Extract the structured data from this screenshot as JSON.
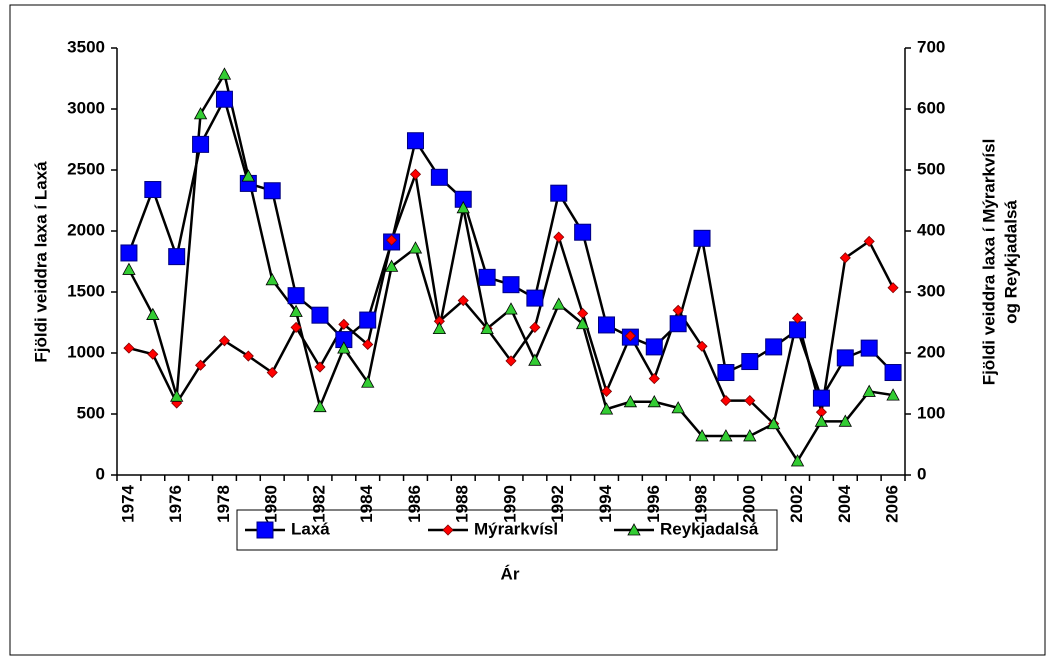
{
  "chart_data": {
    "type": "line",
    "xlabel": "Ár",
    "ylabel": "Fjöldi  veiddra laxa í Laxá",
    "y2label": [
      "Fjöldi veiddra laxa í  Mýrarkvísl",
      "og Reykjadalsá"
    ],
    "categories": [
      "1974",
      null,
      "1976",
      null,
      "1978",
      null,
      "1980",
      null,
      "1982",
      null,
      "1984",
      null,
      "1986",
      null,
      "1988",
      null,
      "1990",
      null,
      "1992",
      null,
      "1994",
      null,
      "1996",
      null,
      "1998",
      null,
      "2000",
      null,
      "2002",
      null,
      "2004",
      null,
      "2006"
    ],
    "ylim": [
      0,
      3500
    ],
    "yticks": [
      0,
      500,
      1000,
      1500,
      2000,
      2500,
      3000,
      3500
    ],
    "y2lim": [
      0,
      700
    ],
    "y2ticks": [
      0,
      100,
      200,
      300,
      400,
      500,
      600,
      700
    ],
    "legend": "bottom",
    "series": [
      {
        "name": "Laxá",
        "color": "#0000ff",
        "marker": "square",
        "values": [
          1820,
          2340,
          1790,
          2710,
          3080,
          2390,
          2330,
          1470,
          1310,
          1110,
          1270,
          1910,
          2740,
          2440,
          2260,
          1620,
          1560,
          1450,
          2310,
          1990,
          1230,
          1130,
          1050,
          1240,
          1940,
          840,
          930,
          1050,
          1190,
          630,
          960,
          1040,
          840
        ]
      },
      {
        "name": "Mýrarkvísl",
        "color": "#ff0000",
        "marker": "diamond",
        "axis": "y2",
        "values": [
          208,
          198,
          118,
          180,
          220,
          195,
          168,
          242,
          177,
          247,
          214,
          385,
          493,
          252,
          286,
          240,
          187,
          242,
          390,
          265,
          137,
          228,
          158,
          270,
          211,
          122,
          122,
          84,
          257,
          103,
          356,
          383,
          307
        ]
      },
      {
        "name": "Reykjadalsá",
        "color": "#33cc33",
        "marker": "triangle",
        "axis": "y2",
        "values": [
          337,
          263,
          129,
          592,
          657,
          490,
          320,
          268,
          112,
          208,
          152,
          342,
          372,
          240,
          438,
          240,
          272,
          188,
          280,
          248,
          108,
          120,
          120,
          110,
          64,
          64,
          64,
          84,
          23,
          88,
          88,
          137,
          131
        ]
      }
    ]
  }
}
